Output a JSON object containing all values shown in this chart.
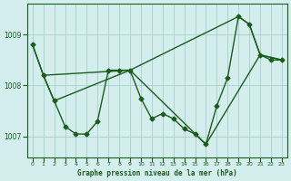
{
  "xlabel": "Graphe pression niveau de la mer (hPa)",
  "bg_color": "#d4eeed",
  "line_color": "#1a5c1a",
  "grid_color": "#a0c8c8",
  "xlim": [
    -0.5,
    23.5
  ],
  "ylim": [
    1006.6,
    1009.6
  ],
  "yticks": [
    1007,
    1008,
    1009
  ],
  "xticks": [
    0,
    1,
    2,
    3,
    4,
    5,
    6,
    7,
    8,
    9,
    10,
    11,
    12,
    13,
    14,
    15,
    16,
    17,
    18,
    19,
    20,
    21,
    22,
    23
  ],
  "line1_x": [
    0,
    1,
    2,
    3,
    4,
    5,
    6,
    7,
    8,
    9,
    10,
    11,
    12,
    13,
    14,
    15,
    16,
    17,
    18,
    19,
    20,
    21,
    22,
    23
  ],
  "line1_y": [
    1008.8,
    1008.2,
    1007.7,
    1007.2,
    1007.05,
    1007.05,
    1007.3,
    1008.3,
    1008.3,
    1008.3,
    1007.75,
    1007.35,
    1007.45,
    1007.35,
    1007.15,
    1007.05,
    1006.85,
    1007.6,
    1008.15,
    1009.35,
    1009.2,
    1008.6,
    1008.5,
    1008.5
  ],
  "line2_x": [
    0,
    1,
    9,
    19,
    20,
    21,
    23
  ],
  "line2_y": [
    1008.8,
    1008.2,
    1008.3,
    1009.35,
    1009.2,
    1008.6,
    1008.5
  ],
  "line3_x": [
    1,
    2,
    9,
    16,
    21,
    23
  ],
  "line3_y": [
    1008.2,
    1007.7,
    1008.3,
    1006.85,
    1008.6,
    1008.5
  ],
  "marker": "D",
  "markersize": 2.5,
  "linewidth": 1.0
}
